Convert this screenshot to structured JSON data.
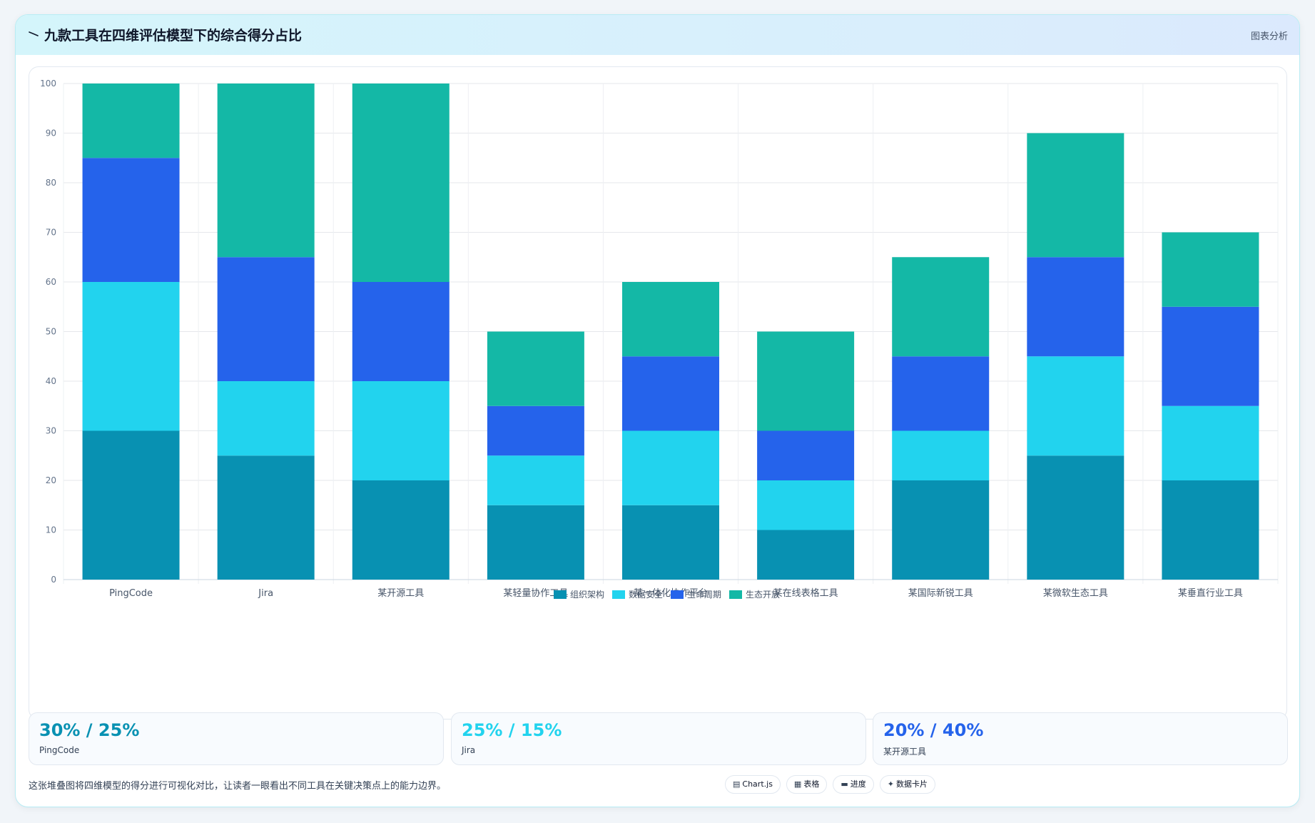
{
  "header": {
    "title": "九款工具在四维评估模型下的综合得分占比",
    "tag": "图表分析"
  },
  "colors": {
    "accent": "#0891b2",
    "series": [
      "#0891b2",
      "#22d3ee",
      "#2563eb",
      "#14b8a6"
    ]
  },
  "chart_data": {
    "type": "bar",
    "stacked": true,
    "categories": [
      "PingCode",
      "Jira",
      "某开源工具",
      "某轻量协作工具",
      "某一体化协作平台",
      "某在线表格工具",
      "某国际新锐工具",
      "某微软生态工具",
      "某垂直行业工具"
    ],
    "series": [
      {
        "name": "组织架构",
        "color": "#0891b2",
        "values": [
          30,
          25,
          20,
          15,
          15,
          10,
          20,
          25,
          20
        ]
      },
      {
        "name": "数据安全",
        "color": "#22d3ee",
        "values": [
          30,
          15,
          20,
          10,
          15,
          10,
          10,
          20,
          15
        ]
      },
      {
        "name": "生命周期",
        "color": "#2563eb",
        "values": [
          25,
          25,
          20,
          10,
          15,
          10,
          15,
          20,
          20
        ]
      },
      {
        "name": "生态开放",
        "color": "#14b8a6",
        "values": [
          15,
          35,
          40,
          15,
          15,
          20,
          20,
          25,
          15
        ]
      }
    ],
    "ylim": [
      0,
      100
    ],
    "yticks": [
      0,
      10,
      20,
      30,
      40,
      50,
      60,
      70,
      80,
      90,
      100
    ],
    "grid": true,
    "legend": "bottom"
  },
  "stats": [
    {
      "value": "30% / 25%",
      "name": "PingCode",
      "color": "#0891b2"
    },
    {
      "value": "25% / 15%",
      "name": "Jira",
      "color": "#22d3ee"
    },
    {
      "value": "20% / 40%",
      "name": "某开源工具",
      "color": "#2563eb"
    }
  ],
  "footer": {
    "note": "这张堆叠图将四维模型的得分进行可视化对比，让读者一眼看出不同工具在关键决策点上的能力边界。",
    "pills": [
      {
        "icon": "▤",
        "label": "Chart.js"
      },
      {
        "icon": "▦",
        "label": "表格"
      },
      {
        "icon": "▬",
        "label": "进度"
      },
      {
        "icon": "✦",
        "label": "数据卡片"
      }
    ]
  }
}
